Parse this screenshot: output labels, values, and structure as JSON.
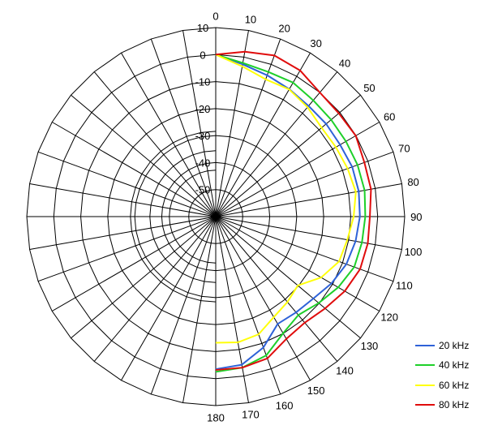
{
  "chart_data": {
    "type": "polar-line",
    "title": "",
    "angular_axis": {
      "range": [
        0,
        180
      ],
      "tick_labels": [
        "0",
        "10",
        "20",
        "30",
        "40",
        "50",
        "60",
        "70",
        "80",
        "90",
        "100",
        "110",
        "120",
        "130",
        "140",
        "150",
        "160",
        "170",
        "180"
      ],
      "spoke_step_degrees": 10,
      "direction": "clockwise",
      "zero_at": "top"
    },
    "radial_axis": {
      "range": [
        -60,
        10
      ],
      "tick_labels": [
        "10",
        "0",
        "-10",
        "-20",
        "-30",
        "-40",
        "-50"
      ],
      "ring_values": [
        -50,
        -40,
        -30,
        -20,
        -10,
        0,
        10
      ],
      "reverse_rings": [
        -40,
        -30,
        -20
      ],
      "reverse_rings_note": "the inner three rings are drawn again in the left half"
    },
    "grid": true,
    "legend_position": "bottom-right",
    "angles": [
      0,
      10,
      20,
      30,
      40,
      50,
      60,
      70,
      80,
      90,
      100,
      110,
      120,
      130,
      140,
      150,
      160,
      170,
      180
    ],
    "series": [
      {
        "name": "20 kHz",
        "color": "#2e62d8",
        "values": [
          0,
          -2.7,
          -4.3,
          -5.5,
          -6.5,
          -6.6,
          -6.8,
          -6.2,
          -6.2,
          -6.6,
          -7.4,
          -8.5,
          -10.5,
          -12.8,
          -13.7,
          -14.1,
          -8.4,
          -4.3,
          -3.5
        ]
      },
      {
        "name": "40 kHz",
        "color": "#1ed02a",
        "values": [
          0,
          -2.2,
          -3.0,
          -2.7,
          -3.8,
          -4.2,
          -4.3,
          -4.1,
          -4.0,
          -4.6,
          -5.0,
          -5.4,
          -7.6,
          -10.2,
          -12.4,
          -10.1,
          -5.3,
          -3.2,
          -2.5
        ]
      },
      {
        "name": "60 kHz",
        "color": "#ffff0a",
        "values": [
          0,
          -3.5,
          -5.9,
          -5.6,
          -7.1,
          -8.8,
          -8.6,
          -8.0,
          -7.3,
          -8.9,
          -10.5,
          -11.4,
          -14.9,
          -20.3,
          -18.7,
          -17.0,
          -13.6,
          -12.7,
          -13.3
        ]
      },
      {
        "name": "80 kHz",
        "color": "#e00c0c",
        "values": [
          0,
          2.0,
          3.5,
          2.5,
          0,
          -0.5,
          -0.1,
          -1.4,
          -1.6,
          -2.9,
          -2.8,
          -3.1,
          -4.8,
          -7.1,
          -8.7,
          -7.7,
          -4.1,
          -3.2,
          -3.2
        ]
      }
    ]
  }
}
